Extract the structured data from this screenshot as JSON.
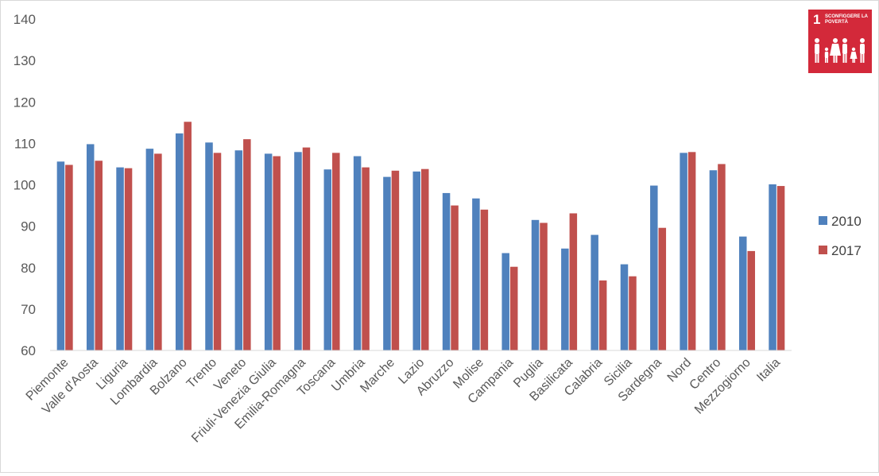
{
  "chart_data": {
    "type": "bar",
    "title": "",
    "xlabel": "",
    "ylabel": "",
    "ylim": [
      60,
      140
    ],
    "yticks": [
      60,
      70,
      80,
      90,
      100,
      110,
      120,
      130,
      140
    ],
    "grid": false,
    "legend_position": "right",
    "categories": [
      "Piemonte",
      "Valle d'Aosta",
      "Liguria",
      "Lombardia",
      "Bolzano",
      "Trento",
      "Veneto",
      "Friuli-Venezia Giulia",
      "Emilia-Romagna",
      "Toscana",
      "Umbria",
      "Marche",
      "Lazio",
      "Abruzzo",
      "Molise",
      "Campania",
      "Puglia",
      "Basilicata",
      "Calabria",
      "Sicilia",
      "Sardegna",
      "Nord",
      "Centro",
      "Mezzogiorno",
      "Italia"
    ],
    "series": [
      {
        "name": "2010",
        "color": "#4F81BD",
        "values": [
          105.6,
          109.8,
          104.2,
          108.7,
          112.4,
          110.2,
          108.3,
          107.5,
          107.9,
          103.7,
          106.9,
          101.9,
          103.2,
          98.0,
          96.7,
          83.5,
          91.5,
          84.6,
          87.9,
          80.8,
          99.8,
          107.7,
          103.5,
          87.5,
          100.1
        ]
      },
      {
        "name": "2017",
        "color": "#C0504D",
        "values": [
          104.8,
          105.8,
          104.0,
          107.5,
          115.2,
          107.7,
          111.0,
          106.9,
          109.0,
          107.7,
          104.2,
          103.4,
          103.8,
          95.0,
          94.0,
          80.2,
          90.8,
          93.1,
          76.9,
          77.9,
          89.6,
          107.9,
          105.0,
          84.0,
          99.7
        ]
      }
    ]
  },
  "badge": {
    "number": "1",
    "text": "SCONFIGGERE LA POVERTÀ",
    "color": "#D3293A",
    "icon": "family-icon"
  }
}
